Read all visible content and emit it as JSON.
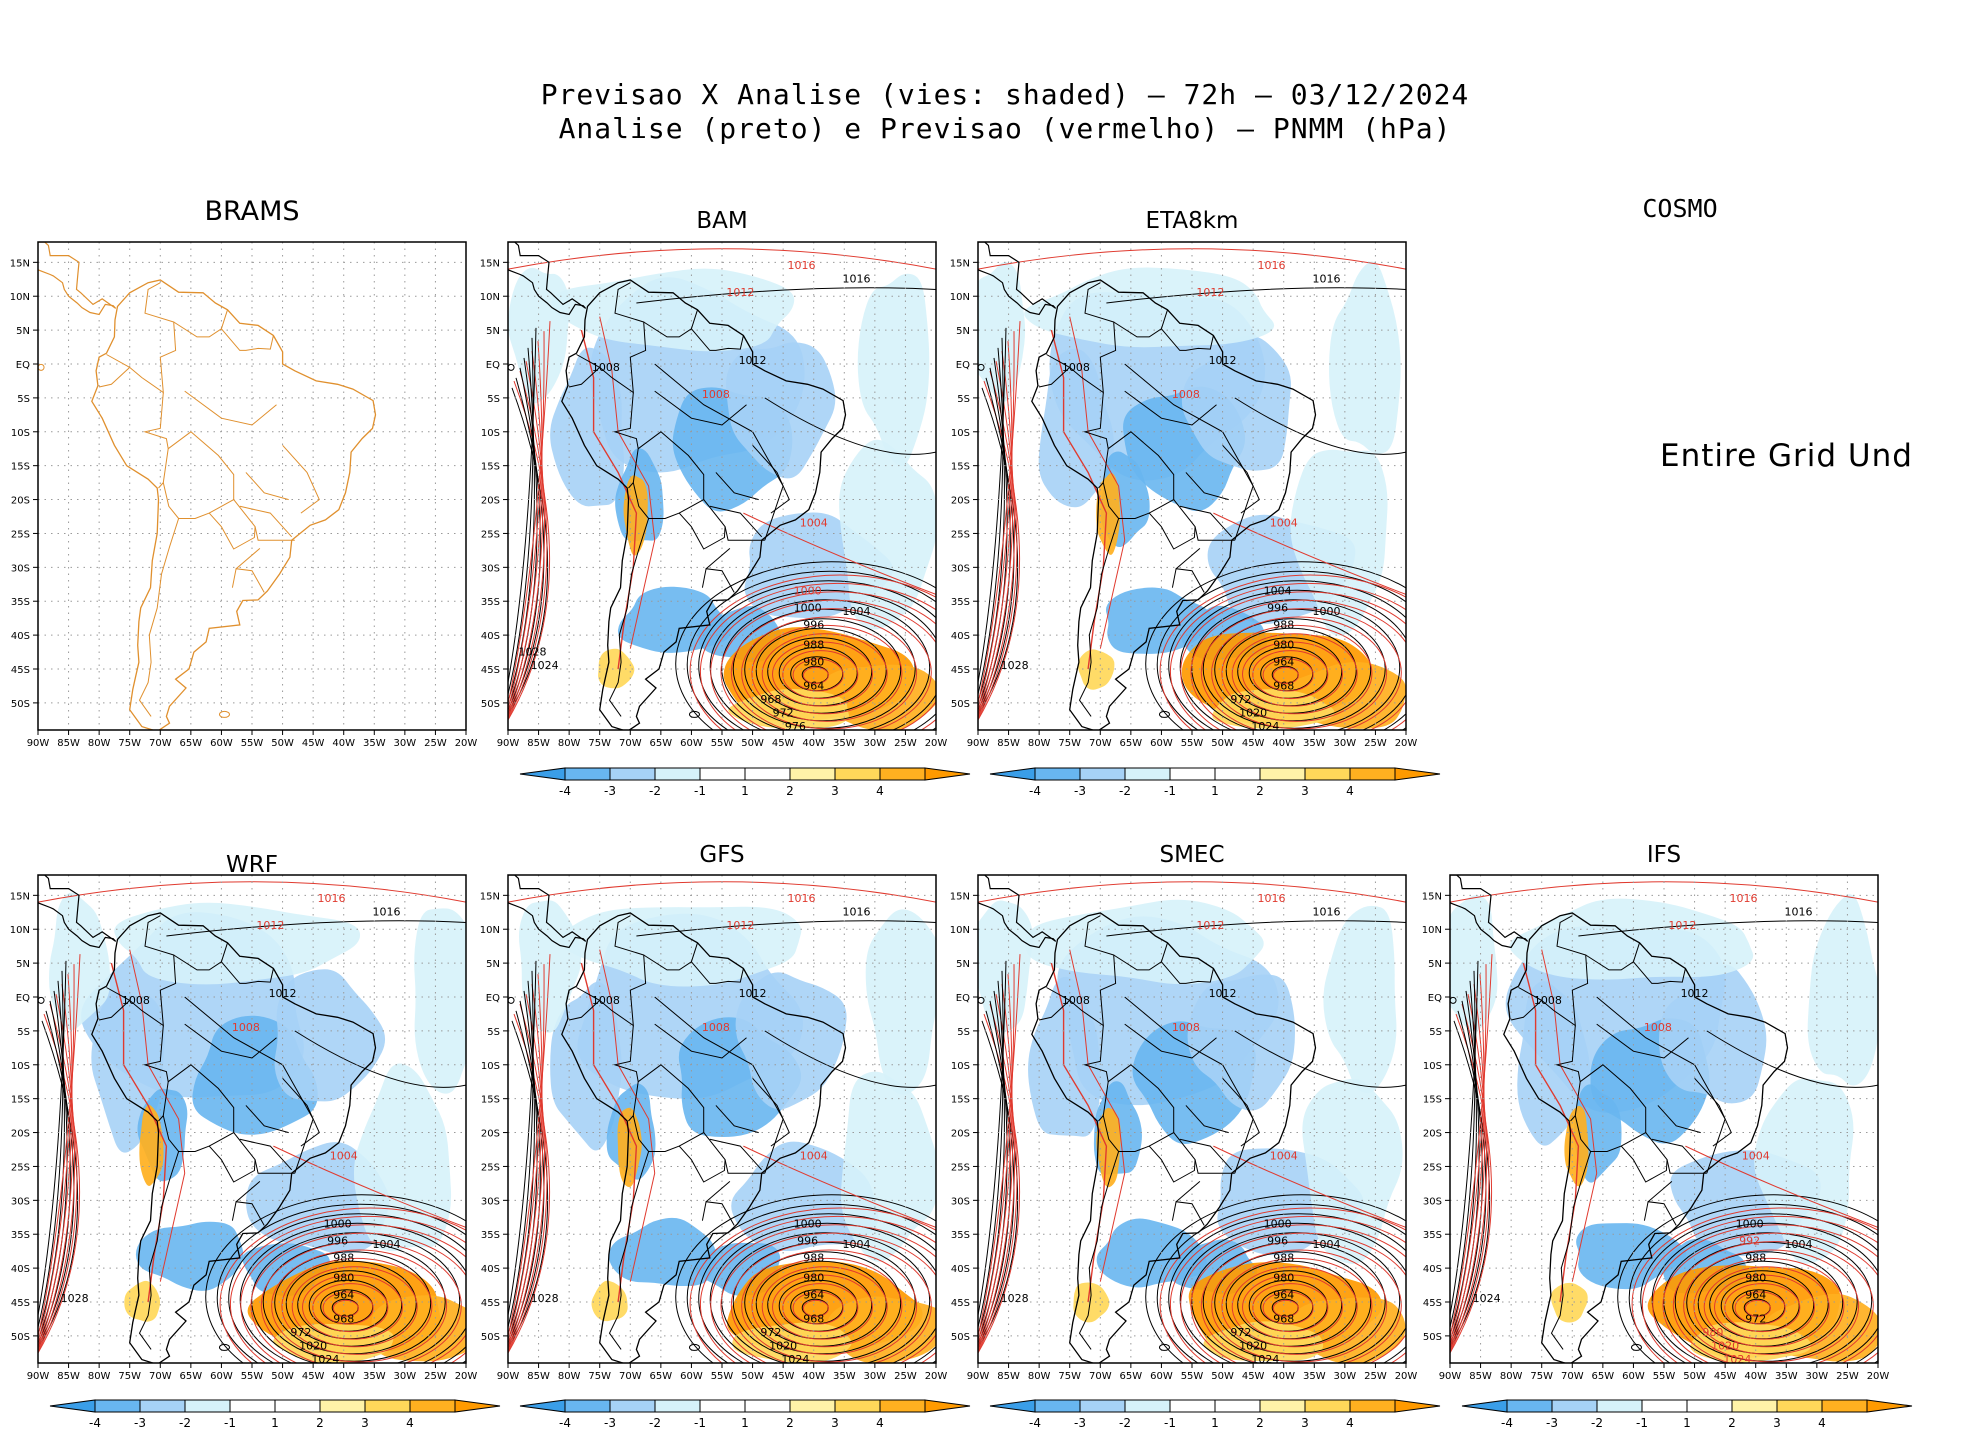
{
  "header": {
    "line1": "Previsao X Analise (vies: shaded) – 72h – 03/12/2024",
    "line2": "Analise (preto) e Previsao (vermelho) – PNMM (hPa)"
  },
  "axes": {
    "lat_labels": [
      "15N",
      "10N",
      "5N",
      "EQ",
      "5S",
      "10S",
      "15S",
      "20S",
      "25S",
      "30S",
      "35S",
      "40S",
      "45S",
      "50S"
    ],
    "lon_labels": [
      "90W",
      "85W",
      "80W",
      "75W",
      "70W",
      "65W",
      "60W",
      "55W",
      "50W",
      "45W",
      "40W",
      "35W",
      "30W",
      "25W",
      "20W"
    ]
  },
  "colorbar": {
    "ticks": [
      "-4",
      "-3",
      "-2",
      "-1",
      "1",
      "2",
      "3",
      "4"
    ],
    "colors": [
      "#3a9ee8",
      "#68b6f0",
      "#a6d2f6",
      "#d6f2fa",
      "#ffffff",
      "#ffffff",
      "#fff3a8",
      "#ffd85a",
      "#ffb020",
      "#ff9a00"
    ]
  },
  "colors": {
    "analysis": "#000000",
    "forecast": "#e03a2f",
    "brams_coast": "#e0902e",
    "grid": "#9a9a9a"
  },
  "panels": [
    {
      "id": "brams",
      "title": "BRAMS",
      "has_field": false,
      "has_colorbar": false,
      "labels": []
    },
    {
      "id": "bam",
      "title": "BAM",
      "has_field": true,
      "has_colorbar": true,
      "labels": [
        {
          "t": "1016",
          "c": "r"
        },
        {
          "t": "1016",
          "c": "k"
        },
        {
          "t": "1012",
          "c": "r"
        },
        {
          "t": "1012",
          "c": "k"
        },
        {
          "t": "1008",
          "c": "k"
        },
        {
          "t": "1008",
          "c": "r"
        },
        {
          "t": "1004",
          "c": "r"
        },
        {
          "t": "1004",
          "c": "k"
        },
        {
          "t": "1000",
          "c": "r"
        },
        {
          "t": "1000",
          "c": "k"
        },
        {
          "t": "996",
          "c": "k"
        },
        {
          "t": "988",
          "c": "k"
        },
        {
          "t": "980",
          "c": "k"
        },
        {
          "t": "964",
          "c": "k"
        },
        {
          "t": "968",
          "c": "k"
        },
        {
          "t": "972",
          "c": "k"
        },
        {
          "t": "976",
          "c": "k"
        },
        {
          "t": "1024",
          "c": "k"
        },
        {
          "t": "1028",
          "c": "k"
        }
      ]
    },
    {
      "id": "eta",
      "title": "ETA8km",
      "has_field": true,
      "has_colorbar": true,
      "labels": [
        {
          "t": "1016",
          "c": "r"
        },
        {
          "t": "1016",
          "c": "k"
        },
        {
          "t": "1012",
          "c": "r"
        },
        {
          "t": "1012",
          "c": "k"
        },
        {
          "t": "1008",
          "c": "k"
        },
        {
          "t": "1008",
          "c": "r"
        },
        {
          "t": "1004",
          "c": "r"
        },
        {
          "t": "1000",
          "c": "k"
        },
        {
          "t": "1004",
          "c": "k"
        },
        {
          "t": "996",
          "c": "k"
        },
        {
          "t": "988",
          "c": "k"
        },
        {
          "t": "980",
          "c": "k"
        },
        {
          "t": "964",
          "c": "k"
        },
        {
          "t": "968",
          "c": "k"
        },
        {
          "t": "972",
          "c": "k"
        },
        {
          "t": "1020",
          "c": "k"
        },
        {
          "t": "1024",
          "c": "k"
        },
        {
          "t": "1028",
          "c": "k"
        }
      ]
    },
    {
      "id": "cosmo",
      "title": "COSMO",
      "has_field": false,
      "has_colorbar": false,
      "notice": "Entire Grid Und",
      "labels": []
    },
    {
      "id": "wrf",
      "title": "WRF",
      "has_field": true,
      "has_colorbar": true,
      "labels": [
        {
          "t": "1016",
          "c": "r"
        },
        {
          "t": "1016",
          "c": "k"
        },
        {
          "t": "1012",
          "c": "r"
        },
        {
          "t": "1012",
          "c": "k"
        },
        {
          "t": "1008",
          "c": "k"
        },
        {
          "t": "1008",
          "c": "r"
        },
        {
          "t": "1004",
          "c": "r"
        },
        {
          "t": "1004",
          "c": "k"
        },
        {
          "t": "1000",
          "c": "k"
        },
        {
          "t": "996",
          "c": "k"
        },
        {
          "t": "988",
          "c": "k"
        },
        {
          "t": "980",
          "c": "k"
        },
        {
          "t": "964",
          "c": "k"
        },
        {
          "t": "968",
          "c": "k"
        },
        {
          "t": "972",
          "c": "k"
        },
        {
          "t": "1020",
          "c": "k"
        },
        {
          "t": "1024",
          "c": "k"
        },
        {
          "t": "1028",
          "c": "k"
        }
      ]
    },
    {
      "id": "gfs",
      "title": "GFS",
      "has_field": true,
      "has_colorbar": true,
      "labels": [
        {
          "t": "1016",
          "c": "r"
        },
        {
          "t": "1016",
          "c": "k"
        },
        {
          "t": "1012",
          "c": "r"
        },
        {
          "t": "1012",
          "c": "k"
        },
        {
          "t": "1008",
          "c": "k"
        },
        {
          "t": "1008",
          "c": "r"
        },
        {
          "t": "1004",
          "c": "r"
        },
        {
          "t": "1004",
          "c": "k"
        },
        {
          "t": "1000",
          "c": "k"
        },
        {
          "t": "996",
          "c": "k"
        },
        {
          "t": "988",
          "c": "k"
        },
        {
          "t": "980",
          "c": "k"
        },
        {
          "t": "964",
          "c": "k"
        },
        {
          "t": "968",
          "c": "k"
        },
        {
          "t": "972",
          "c": "k"
        },
        {
          "t": "1020",
          "c": "k"
        },
        {
          "t": "1024",
          "c": "k"
        },
        {
          "t": "1028",
          "c": "k"
        }
      ]
    },
    {
      "id": "smec",
      "title": "SMEC",
      "has_field": true,
      "has_colorbar": true,
      "labels": [
        {
          "t": "1016",
          "c": "r"
        },
        {
          "t": "1016",
          "c": "k"
        },
        {
          "t": "1012",
          "c": "r"
        },
        {
          "t": "1012",
          "c": "k"
        },
        {
          "t": "1008",
          "c": "k"
        },
        {
          "t": "1008",
          "c": "r"
        },
        {
          "t": "1004",
          "c": "r"
        },
        {
          "t": "1004",
          "c": "k"
        },
        {
          "t": "1000",
          "c": "k"
        },
        {
          "t": "996",
          "c": "k"
        },
        {
          "t": "988",
          "c": "k"
        },
        {
          "t": "980",
          "c": "k"
        },
        {
          "t": "964",
          "c": "k"
        },
        {
          "t": "968",
          "c": "k"
        },
        {
          "t": "972",
          "c": "k"
        },
        {
          "t": "1020",
          "c": "k"
        },
        {
          "t": "1024",
          "c": "k"
        },
        {
          "t": "1028",
          "c": "k"
        }
      ]
    },
    {
      "id": "ifs",
      "title": "IFS",
      "has_field": true,
      "has_colorbar": true,
      "labels": [
        {
          "t": "1016",
          "c": "r"
        },
        {
          "t": "1016",
          "c": "k"
        },
        {
          "t": "1012",
          "c": "r"
        },
        {
          "t": "1012",
          "c": "k"
        },
        {
          "t": "1008",
          "c": "k"
        },
        {
          "t": "1008",
          "c": "r"
        },
        {
          "t": "1004",
          "c": "r"
        },
        {
          "t": "1004",
          "c": "k"
        },
        {
          "t": "1000",
          "c": "k"
        },
        {
          "t": "992",
          "c": "r"
        },
        {
          "t": "988",
          "c": "k"
        },
        {
          "t": "980",
          "c": "k"
        },
        {
          "t": "964",
          "c": "k"
        },
        {
          "t": "972",
          "c": "k"
        },
        {
          "t": "980",
          "c": "r"
        },
        {
          "t": "1020",
          "c": "r"
        },
        {
          "t": "1024",
          "c": "r"
        },
        {
          "t": "1024",
          "c": "k"
        }
      ]
    }
  ]
}
